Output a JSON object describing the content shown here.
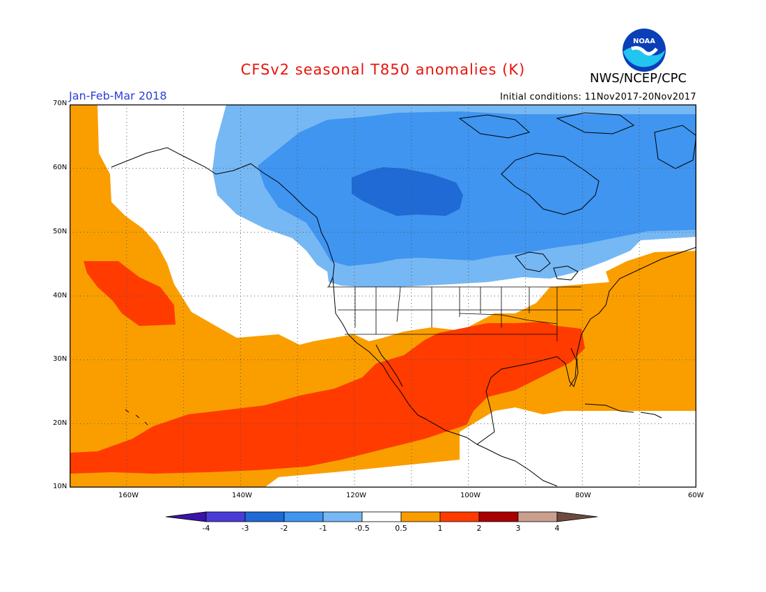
{
  "header": {
    "title": "CFSv2 seasonal T850 anomalies (K)",
    "period": "Jan-Feb-Mar 2018",
    "initial_conditions": "Initial conditions: 11Nov2017-20Nov2017",
    "agency": "NWS/NCEP/CPC",
    "logo_text": "NOAA"
  },
  "map": {
    "projection": "cylindrical",
    "lon_range": [
      -170,
      -60
    ],
    "lat_range": [
      10,
      70
    ],
    "lat_labels": [
      "70N",
      "60N",
      "50N",
      "40N",
      "30N",
      "20N",
      "10N"
    ],
    "lon_labels": [
      "160W",
      "140W",
      "120W",
      "100W",
      "80W",
      "60W"
    ],
    "grid": "dotted every 10 degrees"
  },
  "legend": {
    "labels": [
      "-4",
      "-3",
      "-2",
      "-1",
      "-0.5",
      "0.5",
      "1",
      "2",
      "3",
      "4"
    ],
    "colors": [
      "#3a14a8",
      "#4a3dd6",
      "#1f6ad4",
      "#3f95f0",
      "#76b8f4",
      "#ffffff",
      "#fa9e00",
      "#ff3b00",
      "#a80000",
      "#c9a08e",
      "#6e4a3e"
    ]
  }
}
